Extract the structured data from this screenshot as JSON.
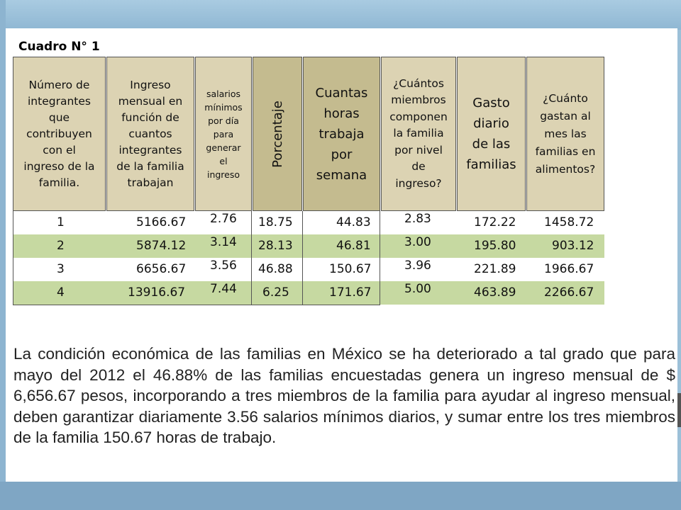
{
  "title": "Cuadro N° 1",
  "headers": {
    "integrantes": [
      "Número de",
      "integrantes",
      "que",
      "contribuyen",
      "con el",
      "ingreso de la",
      "familia."
    ],
    "ingreso": [
      "Ingreso",
      "mensual en",
      "función de",
      "cuantos",
      "integrantes",
      "de la familia",
      "trabajan"
    ],
    "salarios": [
      "salarios",
      "mínimos",
      "por día",
      "para",
      "generar",
      "el",
      "ingreso"
    ],
    "porcentaje": "Porcentaje",
    "horas": [
      "Cuantas",
      "horas",
      "trabaja",
      "por",
      "semana"
    ],
    "miembros": [
      "¿Cuántos",
      "miembros",
      "componen",
      "la familia",
      "por nivel",
      "de",
      "ingreso?"
    ],
    "gasto": [
      "Gasto",
      "diario",
      "de las",
      "familias"
    ],
    "alimentos": [
      "¿Cuánto",
      "gastan al",
      "mes las",
      "familias en",
      "alimentos?"
    ]
  },
  "rows": [
    {
      "n": "1",
      "ingreso": "5166.67",
      "salarios": "2.76",
      "porcentaje": "18.75",
      "horas": "44.83",
      "miembros": "2.83",
      "gasto": "172.22",
      "alimentos": "1458.72"
    },
    {
      "n": "2",
      "ingreso": "5874.12",
      "salarios": "3.14",
      "porcentaje": "28.13",
      "horas": "46.81",
      "miembros": "3.00",
      "gasto": "195.80",
      "alimentos": "903.12"
    },
    {
      "n": "3",
      "ingreso": "6656.67",
      "salarios": "3.56",
      "porcentaje": "46.88",
      "horas": "150.67",
      "miembros": "3.96",
      "gasto": "221.89",
      "alimentos": "1966.67"
    },
    {
      "n": "4",
      "ingreso": "13916.67",
      "salarios": "7.44",
      "porcentaje": "6.25",
      "horas": "171.67",
      "miembros": "5.00",
      "gasto": "463.89",
      "alimentos": "2266.67"
    }
  ],
  "paragraph": "La condición económica de las familias en México se ha deteriorado a tal grado que para mayo del 2012 el 46.88% de las familias encuestadas genera un ingreso mensual de $ 6,656.67 pesos, incorporando a tres miembros de la familia para ayudar al ingreso mensual, deben garantizar diariamente 3.56 salarios mínimos diarios, y sumar entre los tres miembros de la familia 150.67 horas de trabajo.",
  "colors": {
    "header": "#dcd3b3",
    "header_dark": "#c4bb8f",
    "row_green": "#c6d9a1"
  }
}
